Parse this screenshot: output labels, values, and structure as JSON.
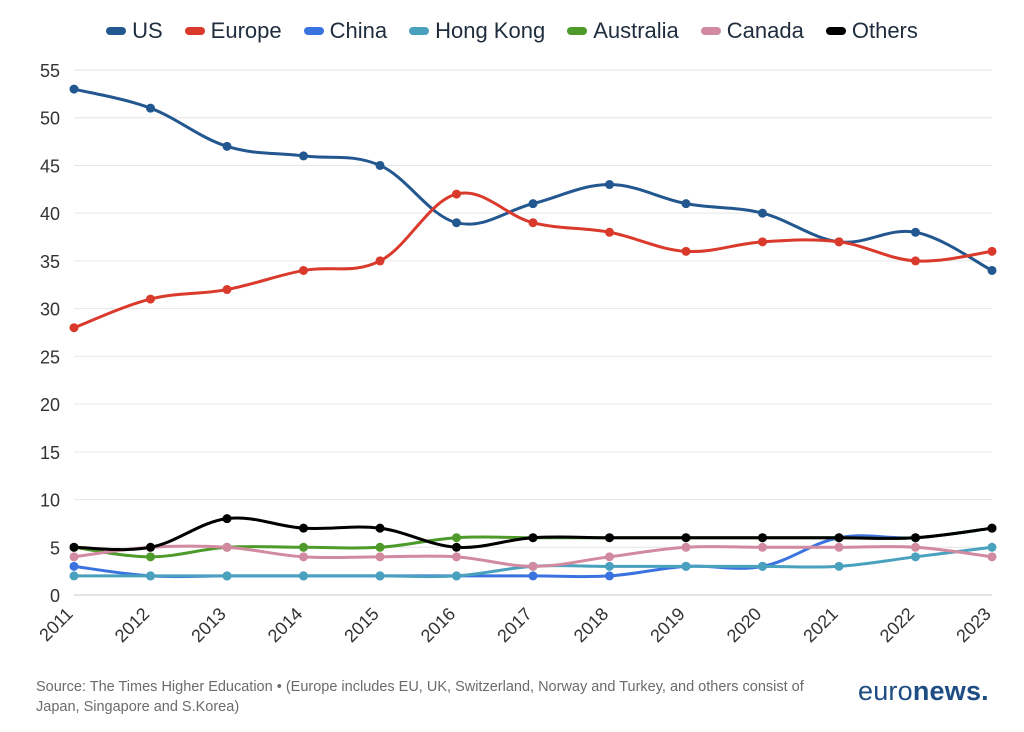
{
  "chart_data": {
    "type": "line",
    "categories": [
      "2011",
      "2012",
      "2013",
      "2014",
      "2015",
      "2016",
      "2017",
      "2018",
      "2019",
      "2020",
      "2021",
      "2022",
      "2023"
    ],
    "ylim": [
      0,
      55
    ],
    "yticks": [
      0,
      5,
      10,
      15,
      20,
      25,
      30,
      35,
      40,
      45,
      50,
      55
    ],
    "grid": "horizontal",
    "legend_position": "top",
    "series": [
      {
        "name": "US",
        "color": "#23578f",
        "values": [
          53,
          51,
          47,
          46,
          45,
          39,
          41,
          43,
          41,
          40,
          37,
          38,
          34
        ]
      },
      {
        "name": "Europe",
        "color": "#d93a2b",
        "values": [
          28,
          31,
          32,
          34,
          35,
          42,
          39,
          38,
          36,
          37,
          37,
          35,
          36
        ]
      },
      {
        "name": "China",
        "color": "#3a73e0",
        "values": [
          3,
          2,
          2,
          2,
          2,
          2,
          2,
          2,
          3,
          3,
          6,
          6,
          7
        ]
      },
      {
        "name": "Hong Kong",
        "color": "#4aa1bd",
        "values": [
          2,
          2,
          2,
          2,
          2,
          2,
          3,
          3,
          3,
          3,
          3,
          4,
          5
        ]
      },
      {
        "name": "Australia",
        "color": "#4e9a2a",
        "values": [
          5,
          4,
          5,
          5,
          5,
          6,
          6,
          6,
          6,
          6,
          6,
          6,
          7
        ]
      },
      {
        "name": "Canada",
        "color": "#d18aa0",
        "values": [
          4,
          5,
          5,
          4,
          4,
          4,
          3,
          4,
          5,
          5,
          5,
          5,
          4
        ]
      },
      {
        "name": "Others",
        "color": "#000000",
        "values": [
          5,
          5,
          8,
          7,
          7,
          5,
          6,
          6,
          6,
          6,
          6,
          6,
          7
        ]
      }
    ]
  },
  "footer": {
    "source": "Source: The Times Higher Education • (Europe includes EU, UK, Switzerland, Norway and Turkey, and others consist of Japan, Singapore and S.Korea)",
    "brand_left": "euro",
    "brand_right": "news."
  }
}
